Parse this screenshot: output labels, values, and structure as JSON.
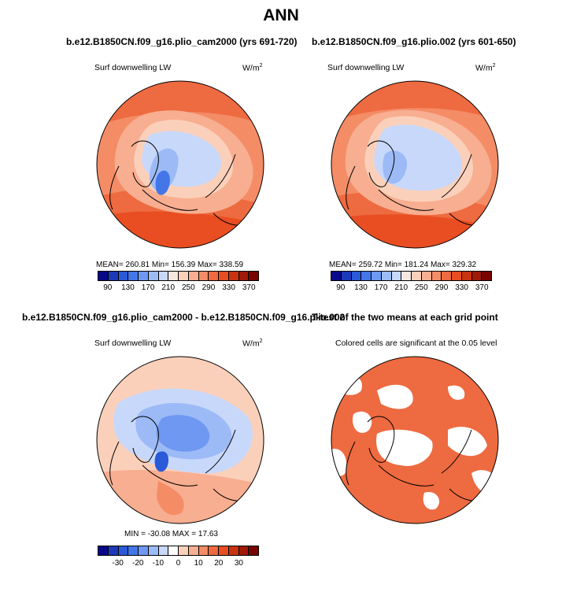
{
  "title": "ANN",
  "panels": {
    "top_left": {
      "title": "b.e12.B1850CN.f09_g16.plio_cam2000 (yrs 691-720)",
      "subtitle": "Surf downwelling LW",
      "units_base": "W/m",
      "units_exp": "2",
      "stats": "MEAN= 260.81   Min= 156.39   Max= 338.59"
    },
    "top_right": {
      "title": "b.e12.B1850CN.f09_g16.plio.002 (yrs 601-650)",
      "subtitle": "Surf downwelling LW",
      "units_base": "W/m",
      "units_exp": "2",
      "stats": "MEAN= 259.72   Min= 181.24   Max= 329.32"
    },
    "bottom_left": {
      "title": "b.e12.B1850CN.f09_g16.plio_cam2000 - b.e12.B1850CN.f09_g16.plio.002",
      "subtitle": "Surf downwelling LW",
      "units_base": "W/m",
      "units_exp": "2",
      "stats": "MIN = -30.08  MAX =  17.63"
    },
    "bottom_right": {
      "title": "T-test of the two means at each grid point",
      "subtitle": "Colored cells are significant at the 0.05 level"
    }
  },
  "colorbars": {
    "abs": {
      "colors": [
        "#08088a",
        "#1c3ab8",
        "#2a5ad8",
        "#4476e8",
        "#6e98f2",
        "#9cbaf6",
        "#c8d8fa",
        "#f6e8e0",
        "#fbd0ba",
        "#f8ae90",
        "#f48c66",
        "#ee6a40",
        "#e84e22",
        "#c83410",
        "#a01a08",
        "#780400"
      ],
      "labels": [
        "90",
        "130",
        "170",
        "210",
        "250",
        "290",
        "330",
        "370"
      ]
    },
    "diff": {
      "colors": [
        "#08088a",
        "#1c3ab8",
        "#2a5ad8",
        "#4476e8",
        "#6e98f2",
        "#9cbaf6",
        "#c8d8fa",
        "#ffffff",
        "#fbd0ba",
        "#f8ae90",
        "#f48c66",
        "#ee6a40",
        "#e84e22",
        "#c83410",
        "#a01a08",
        "#780400"
      ],
      "labels": [
        "-30",
        "-20",
        "-10",
        "0",
        "10",
        "20",
        "30"
      ]
    }
  }
}
